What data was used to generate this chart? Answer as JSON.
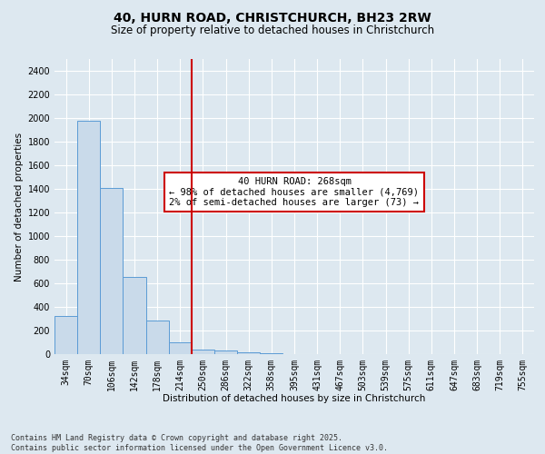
{
  "title_line1": "40, HURN ROAD, CHRISTCHURCH, BH23 2RW",
  "title_line2": "Size of property relative to detached houses in Christchurch",
  "xlabel": "Distribution of detached houses by size in Christchurch",
  "ylabel": "Number of detached properties",
  "categories": [
    "34sqm",
    "70sqm",
    "106sqm",
    "142sqm",
    "178sqm",
    "214sqm",
    "250sqm",
    "286sqm",
    "322sqm",
    "358sqm",
    "395sqm",
    "431sqm",
    "467sqm",
    "503sqm",
    "539sqm",
    "575sqm",
    "611sqm",
    "647sqm",
    "683sqm",
    "719sqm",
    "755sqm"
  ],
  "values": [
    325,
    1980,
    1410,
    655,
    285,
    100,
    40,
    30,
    15,
    8,
    0,
    0,
    0,
    0,
    0,
    0,
    0,
    0,
    0,
    0,
    0
  ],
  "bar_color": "#c9daea",
  "bar_edge_color": "#5b9bd5",
  "vline_x_index": 6,
  "vline_color": "#cc0000",
  "annotation_text": "40 HURN ROAD: 268sqm\n← 98% of detached houses are smaller (4,769)\n2% of semi-detached houses are larger (73) →",
  "annotation_box_color": "#ffffff",
  "annotation_box_edge": "#cc0000",
  "ylim": [
    0,
    2500
  ],
  "yticks": [
    0,
    200,
    400,
    600,
    800,
    1000,
    1200,
    1400,
    1600,
    1800,
    2000,
    2200,
    2400
  ],
  "background_color": "#dde8f0",
  "grid_color": "#ffffff",
  "footer_line1": "Contains HM Land Registry data © Crown copyright and database right 2025.",
  "footer_line2": "Contains public sector information licensed under the Open Government Licence v3.0.",
  "title_fontsize": 10,
  "subtitle_fontsize": 8.5,
  "axis_label_fontsize": 7.5,
  "tick_fontsize": 7,
  "annotation_fontsize": 7.5,
  "footer_fontsize": 6
}
